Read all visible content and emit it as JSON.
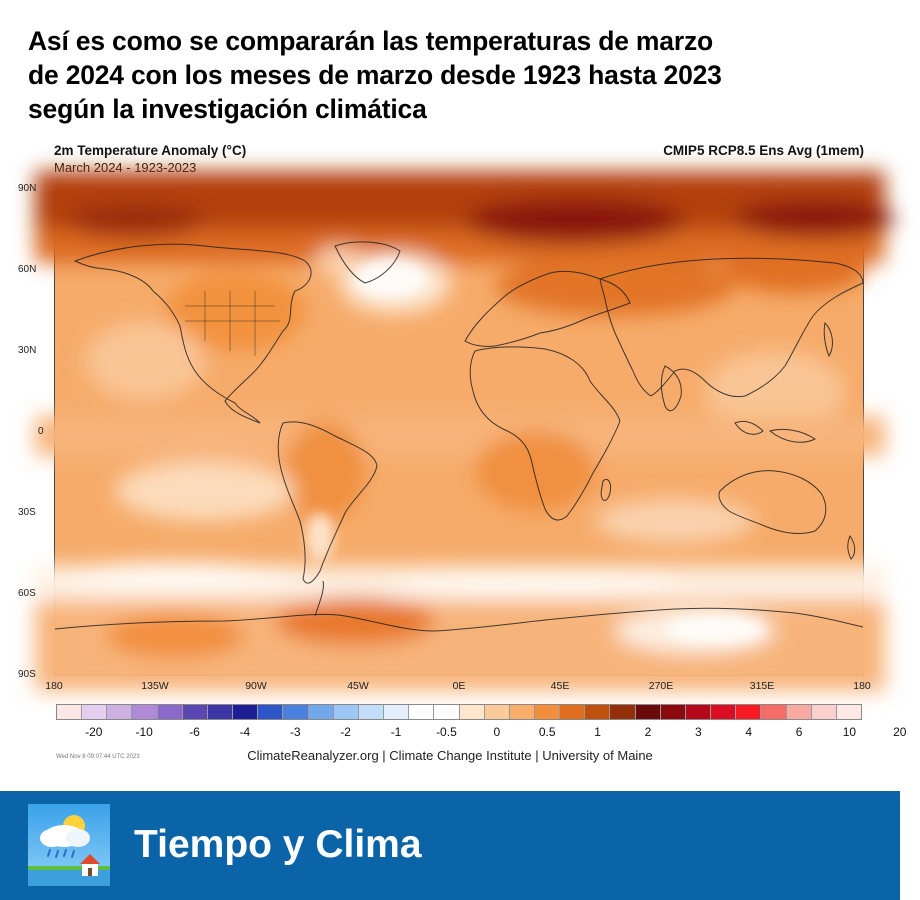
{
  "headline": {
    "line1": "Así es como se compararán las temperaturas de marzo",
    "line2": "de 2024 con los meses de marzo desde 1923 hasta 2023",
    "line3": "según la investigación climática"
  },
  "map": {
    "title": "2m Temperature Anomaly (°C)",
    "subtitle": "March 2024 - 1923-2023",
    "model": "CMIP5 RCP8.5 Ens Avg (1mem)",
    "lat_labels": [
      "90N",
      "60N",
      "30N",
      "0",
      "30S",
      "60S",
      "90S"
    ],
    "lon_labels": [
      "180",
      "135W",
      "90W",
      "45W",
      "0E",
      "45E",
      "270E",
      "315E",
      "180"
    ],
    "background_color": "#f4a560"
  },
  "colorbar": {
    "colors": [
      "#fbe8e6",
      "#e4d0ee",
      "#cdb0e4",
      "#b08ad6",
      "#8a69c8",
      "#5b48b4",
      "#3c35a4",
      "#1d1e96",
      "#2c55c8",
      "#4c80de",
      "#74a8ee",
      "#9cc6f4",
      "#c2ddf8",
      "#e2eefb",
      "#ffffff",
      "#ffffff",
      "#fde6cc",
      "#fbcb9a",
      "#f8ad6a",
      "#f28e3c",
      "#e06e1c",
      "#c0500c",
      "#93300a",
      "#6b0a0a",
      "#8a0a10",
      "#b4081a",
      "#dc0c22",
      "#f51a24",
      "#f76c66",
      "#f9a8a2",
      "#fbd0cc",
      "#fde8e6"
    ],
    "labels": [
      "-20",
      "-10",
      "-6",
      "-4",
      "-3",
      "-2",
      "-1",
      "-0.5",
      "0",
      "0.5",
      "1",
      "2",
      "3",
      "4",
      "6",
      "10",
      "20"
    ]
  },
  "footer": {
    "timestamp": "Wed Nov 8 09:07:44 UTC 2023",
    "credit": "ClimateReanalyzer.org | Climate Change Institute | University of Maine"
  },
  "brand": {
    "name": "Tiempo y Clima",
    "icon": "weather-app-icon",
    "bar_color": "#0b63a8"
  }
}
